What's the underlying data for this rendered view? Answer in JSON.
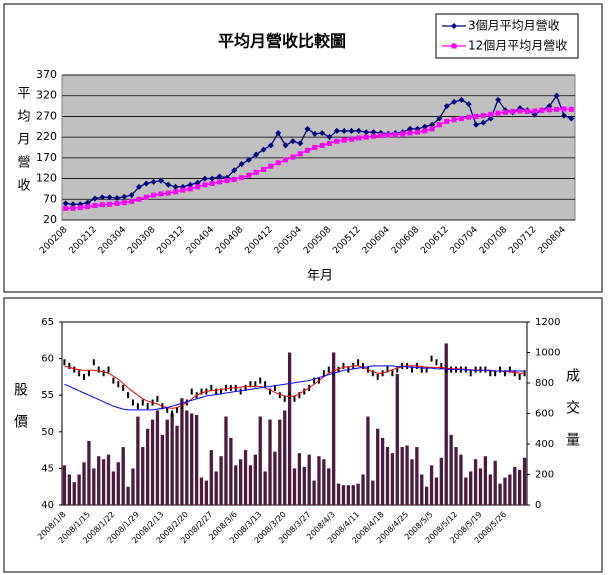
{
  "chart_data": [
    {
      "type": "line",
      "title": "平均月營收比較圖",
      "ylabel": "平均月營收",
      "xlabel": "年月",
      "categories": [
        "200208",
        null,
        null,
        null,
        "200212",
        null,
        null,
        null,
        "200304",
        null,
        null,
        null,
        "200308",
        null,
        null,
        null,
        "200312",
        null,
        null,
        null,
        "200404",
        null,
        null,
        null,
        "200408",
        null,
        null,
        null,
        "200412",
        null,
        null,
        null,
        "200504",
        null,
        null,
        null,
        "200508",
        null,
        null,
        null,
        "200512",
        null,
        null,
        null,
        "200604",
        null,
        null,
        null,
        "200608",
        null,
        null,
        null,
        "200612",
        null,
        null,
        null,
        "200704",
        null,
        null,
        null,
        "200708",
        null,
        null,
        null,
        "200712",
        null,
        null,
        null,
        "200804",
        null
      ],
      "ylim": [
        20,
        370
      ],
      "yticks": [
        20,
        70,
        120,
        170,
        220,
        270,
        320,
        370
      ],
      "grid": true,
      "legend": "top-right",
      "series": [
        {
          "name": "3個月平均月營收",
          "color": "#000080",
          "marker": "diamond",
          "values": [
            60,
            58,
            58,
            62,
            72,
            75,
            75,
            73,
            76,
            80,
            100,
            108,
            112,
            115,
            105,
            100,
            100,
            105,
            110,
            120,
            120,
            125,
            122,
            140,
            155,
            165,
            178,
            190,
            200,
            230,
            200,
            210,
            205,
            240,
            228,
            230,
            220,
            235,
            235,
            235,
            235,
            232,
            232,
            230,
            228,
            230,
            232,
            240,
            240,
            245,
            250,
            265,
            295,
            305,
            310,
            300,
            250,
            255,
            265,
            310,
            285,
            280,
            290,
            285,
            275,
            285,
            295,
            320,
            272,
            265
          ]
        },
        {
          "name": "12個月平均月營收",
          "color": "#ff00ff",
          "marker": "square",
          "values": [
            48,
            48,
            50,
            52,
            55,
            57,
            58,
            60,
            62,
            65,
            70,
            75,
            80,
            83,
            85,
            88,
            92,
            95,
            100,
            105,
            108,
            112,
            115,
            118,
            122,
            128,
            135,
            142,
            150,
            158,
            165,
            172,
            180,
            188,
            195,
            200,
            205,
            210,
            213,
            215,
            218,
            220,
            222,
            224,
            225,
            226,
            228,
            230,
            232,
            235,
            240,
            250,
            258,
            262,
            265,
            268,
            270,
            272,
            275,
            278,
            280,
            282,
            283,
            282,
            283,
            285,
            286,
            287,
            288,
            287
          ]
        }
      ]
    },
    {
      "type": "stock",
      "ylabel": "股價",
      "y2label": "成交量",
      "categories": [
        "2008/1/8",
        null,
        null,
        null,
        null,
        "2008/1/15",
        null,
        null,
        null,
        null,
        "2008/1/22",
        null,
        null,
        null,
        null,
        "2008/1/29",
        null,
        null,
        null,
        null,
        "2008/2/13",
        null,
        null,
        null,
        null,
        "2008/2/20",
        null,
        null,
        null,
        null,
        "2008/2/27",
        null,
        null,
        null,
        null,
        "2008/3/6",
        null,
        null,
        null,
        null,
        "2008/3/13",
        null,
        null,
        null,
        null,
        "2008/3/20",
        null,
        null,
        null,
        null,
        "2008/3/27",
        null,
        null,
        null,
        null,
        "2008/4/3",
        null,
        null,
        null,
        null,
        "2008/4/11",
        null,
        null,
        null,
        null,
        "2008/4/18",
        null,
        null,
        null,
        null,
        "2008/4/25",
        null,
        null,
        null,
        null,
        "2008/5/5",
        null,
        null,
        null,
        null,
        "2008/5/12",
        null,
        null,
        null,
        null,
        "2008/5/19",
        null,
        null,
        null,
        null,
        "2008/5/26",
        null,
        null,
        null,
        null
      ],
      "ylim": [
        40,
        65
      ],
      "yticks": [
        40,
        45,
        50,
        55,
        60,
        65
      ],
      "y2lim": [
        0,
        1200
      ],
      "y2ticks": [
        0,
        200,
        400,
        600,
        800,
        1000,
        1200
      ],
      "series": [
        {
          "mark": "tick",
          "color": "#000000",
          "values": [
            59.5,
            59,
            58.5,
            58,
            57.5,
            58,
            59.5,
            58.5,
            58,
            58.5,
            57,
            56.5,
            56,
            55,
            54,
            53.5,
            54,
            53.5,
            54,
            54.5,
            53.5,
            53,
            52.5,
            53,
            53.5,
            54,
            55.5,
            55,
            55.5,
            55.5,
            56,
            55.5,
            55.5,
            56,
            56,
            56,
            55.5,
            56,
            56.5,
            56.5,
            57,
            56.5,
            55.5,
            56,
            55,
            54.5,
            55,
            54.5,
            55,
            55.5,
            56,
            57,
            57,
            58,
            58.5,
            58,
            58.5,
            59,
            58.5,
            59,
            59.5,
            59,
            58.5,
            58,
            57.5,
            58,
            58.5,
            58,
            58.5,
            59,
            59,
            58.5,
            59,
            58.5,
            58.5,
            60,
            59.5,
            59,
            58.5,
            58.5,
            58.5,
            58.5,
            58.5,
            58,
            58.5,
            58.5,
            58.5,
            58,
            58,
            58.5,
            58,
            58.5,
            58,
            57.5,
            58
          ]
        },
        {
          "mark": "line",
          "color": "#ff0000",
          "values": [
            59,
            58.8,
            58.6,
            58.5,
            58.4,
            58.4,
            58.4,
            58.3,
            58.2,
            58,
            57.6,
            57.2,
            56.6,
            56,
            55.5,
            55,
            54.5,
            54.2,
            54,
            53.8,
            53.5,
            53.3,
            53.2,
            53.3,
            53.6,
            54,
            54.5,
            55,
            55.3,
            55.5,
            55.6,
            55.7,
            55.8,
            55.9,
            56,
            56,
            56.1,
            56.2,
            56.2,
            56.2,
            56.2,
            56,
            55.7,
            55.4,
            55.1,
            54.9,
            54.8,
            54.9,
            55.2,
            55.6,
            56,
            56.5,
            57,
            57.5,
            58,
            58.3,
            58.6,
            58.8,
            58.9,
            59,
            59,
            58.8,
            58.5,
            58.2,
            58,
            58,
            58.2,
            58.5,
            58.7,
            58.9,
            59,
            59,
            59,
            58.9,
            58.8,
            58.8,
            58.8,
            58.8,
            58.7,
            58.6,
            58.6,
            58.6,
            58.5,
            58.5,
            58.4,
            58.4,
            58.4,
            58.3,
            58.3,
            58.3,
            58.2,
            58.2,
            58.1,
            58,
            58
          ]
        },
        {
          "mark": "line",
          "color": "#0000ff",
          "values": [
            56.5,
            56.2,
            55.9,
            55.6,
            55.3,
            55,
            54.7,
            54.4,
            54.1,
            53.8,
            53.5,
            53.3,
            53.1,
            53,
            53,
            53,
            53,
            53,
            53,
            53.1,
            53.2,
            53.3,
            53.5,
            53.7,
            53.9,
            54.1,
            54.3,
            54.5,
            54.7,
            54.9,
            55,
            55.1,
            55.2,
            55.3,
            55.4,
            55.5,
            55.6,
            55.7,
            55.8,
            55.9,
            56,
            56.1,
            56.2,
            56.3,
            56.4,
            56.5,
            56.6,
            56.7,
            56.8,
            56.9,
            57,
            57.2,
            57.4,
            57.6,
            57.8,
            58,
            58.2,
            58.4,
            58.5,
            58.6,
            58.7,
            58.8,
            58.9,
            59,
            59,
            59,
            59,
            59,
            58.9,
            58.9,
            58.9,
            58.8,
            58.8,
            58.7,
            58.7,
            58.7,
            58.6,
            58.6,
            58.6,
            58.5,
            58.5,
            58.5,
            58.5,
            58.4,
            58.4,
            58.4,
            58.4,
            58.4,
            58.3,
            58.3,
            58.3,
            58.3,
            58.3,
            58.3,
            58.3
          ]
        },
        {
          "mark": "bar",
          "axis": "y2",
          "color": "#4b1a3c",
          "values": [
            260,
            200,
            150,
            200,
            280,
            420,
            240,
            320,
            300,
            330,
            220,
            280,
            380,
            120,
            240,
            580,
            380,
            500,
            560,
            620,
            460,
            560,
            600,
            520,
            700,
            620,
            600,
            590,
            180,
            160,
            360,
            220,
            320,
            580,
            440,
            260,
            300,
            360,
            260,
            330,
            580,
            220,
            560,
            350,
            560,
            620,
            1000,
            240,
            340,
            250,
            330,
            160,
            320,
            300,
            240,
            1000,
            140,
            130,
            130,
            130,
            140,
            200,
            580,
            160,
            500,
            440,
            380,
            340,
            860,
            380,
            390,
            300,
            380,
            200,
            120,
            260,
            180,
            310,
            1060,
            460,
            380,
            330,
            180,
            220,
            300,
            240,
            320,
            200,
            290,
            140,
            180,
            200,
            250,
            230,
            310
          ]
        }
      ]
    }
  ]
}
